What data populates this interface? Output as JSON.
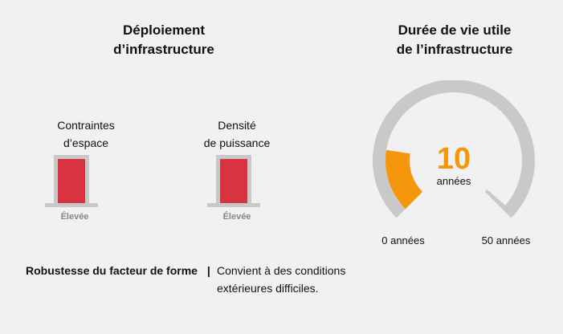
{
  "deployment": {
    "title_line1": "Déploiement",
    "title_line2": "d’infrastructure",
    "indicators": [
      {
        "label_line1": "Contraintes",
        "label_line2": "d’espace",
        "level": "Élevée"
      },
      {
        "label_line1": "Densité",
        "label_line2": "de puissance",
        "level": "Élevée"
      }
    ]
  },
  "lifespan": {
    "title_line1": "Durée de vie utile",
    "title_line2": "de l’infrastructure",
    "value": "10",
    "unit": "années",
    "min_label": "0 années",
    "max_label": "50 années",
    "fraction": 0.2,
    "fill_color": "#f5960c",
    "track_color": "#c9c9c9"
  },
  "ruggedness": {
    "label": "Robustesse du facteur de forme",
    "separator": "|",
    "description_line1": "Convient à des conditions",
    "description_line2": "extérieures difficiles."
  },
  "colors": {
    "indicator_fill": "#d93240",
    "frame": "#c9c9c9",
    "accent": "#f5960c"
  }
}
